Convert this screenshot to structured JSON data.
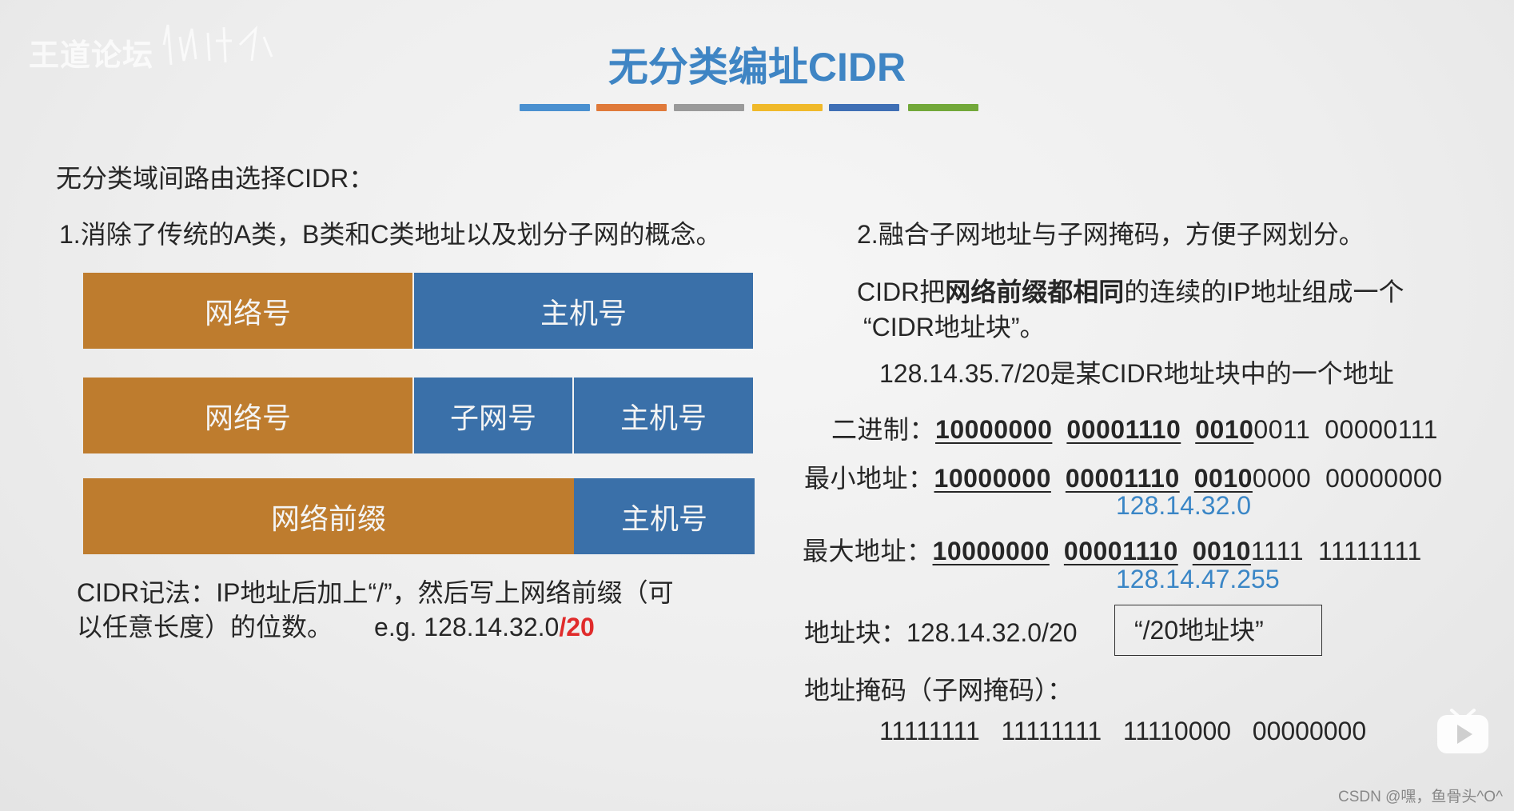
{
  "watermark": {
    "text": "王道论坛"
  },
  "slide": {
    "title": "无分类编址CIDR",
    "color_bar": [
      "#4a90d0",
      "#e07a3a",
      "#9a9a9a",
      "#f0b92a",
      "#3f6fb5",
      "#72a83a"
    ],
    "intro": "无分类域间路由选择CIDR：",
    "point1": "1.消除了传统的A类，B类和C类地址以及划分子网的概念。",
    "point2": "2.融合子网地址与子网掩码，方便子网划分。",
    "blocks": {
      "row1": {
        "network": "网络号",
        "host": "主机号"
      },
      "row2": {
        "network": "网络号",
        "subnet": "子网号",
        "host": "主机号"
      },
      "row3": {
        "prefix": "网络前缀",
        "host": "主机号"
      }
    },
    "notation": {
      "line1": "CIDR记法：IP地址后加上“/”，然后写上网络前缀（可",
      "line2": "以任意长度）的位数。",
      "example_prefix": "e.g. 128.14.32.0",
      "example_suffix": "/20"
    },
    "cidr_desc": {
      "part1": "CIDR把",
      "bold": "网络前缀都相同",
      "part2": "的连续的IP地址组成一个",
      "line2": "“CIDR地址块”。"
    },
    "example_addr": "128.14.35.7/20是某CIDR地址块中的一个地址",
    "binary": {
      "label": "二进制：",
      "b1": "10000000",
      "b2": "00001110",
      "b3": "0010",
      "rest3": "0011",
      "b4": "00000111"
    },
    "min_addr": {
      "label": "最小地址：",
      "b1": "10000000",
      "b2": "00001110",
      "b3": "0010",
      "rest3": "0000",
      "b4": "00000000",
      "dotted": "128.14.32.0"
    },
    "max_addr": {
      "label": "最大地址：",
      "b1": "10000000",
      "b2": "00001110",
      "b3": "0010",
      "rest3": "1111",
      "b4": "11111111",
      "dotted": "128.14.47.255"
    },
    "address_block": {
      "label": "地址块：128.14.32.0/20",
      "boxed": "“/20地址块”"
    },
    "mask": {
      "label": "地址掩码（子网掩码）：",
      "value": "11111111   11111111   11110000   00000000"
    }
  },
  "footer": {
    "credit": "CSDN @嘿，鱼骨头^O^"
  }
}
